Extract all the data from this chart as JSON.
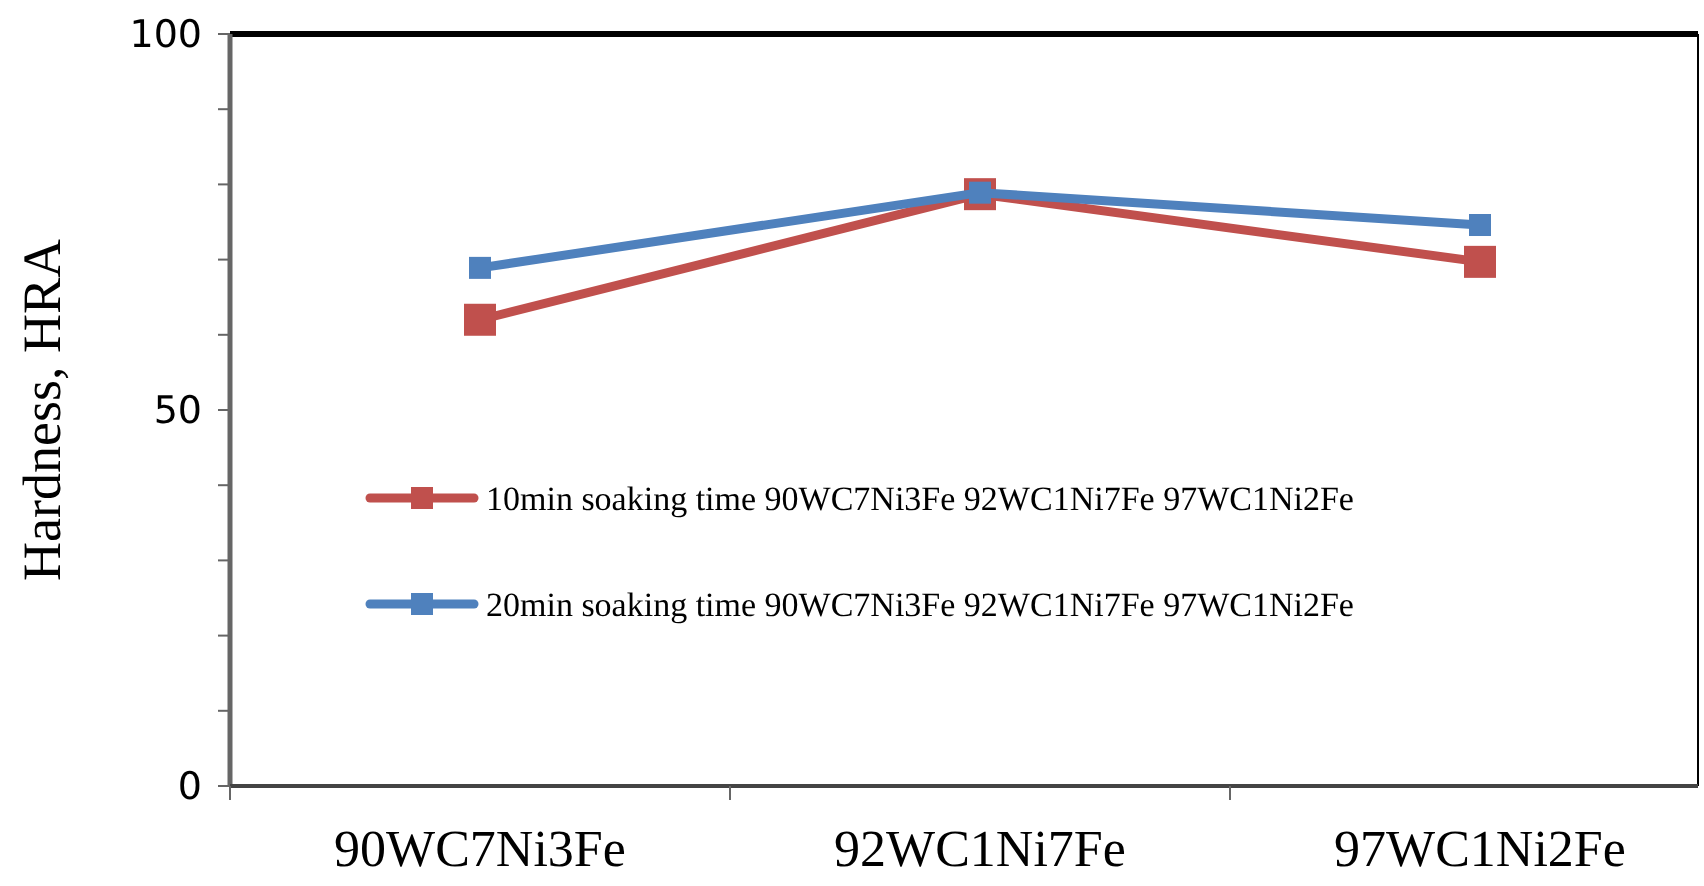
{
  "chart_data": {
    "type": "line",
    "ylabel": "Hardness, HRA",
    "categories": [
      "90WC7Ni3Fe",
      "92WC1Ni7Fe",
      "97WC1Ni2Fe"
    ],
    "series": [
      {
        "name": "10min soaking time 90WC7Ni3Fe 92WC1Ni7Fe 97WC1Ni2Fe",
        "color": "#c0504d",
        "values": [
          62,
          78.7,
          69.7
        ]
      },
      {
        "name": "20min soaking time 90WC7Ni3Fe 92WC1Ni7Fe 97WC1Ni2Fe",
        "color": "#4f81bd",
        "values": [
          68.9,
          78.9,
          74.6
        ]
      }
    ],
    "ylim": [
      0,
      100
    ],
    "yticks": [
      0,
      {
        "value": 10,
        "label": null
      },
      {
        "value": 20,
        "label": null
      },
      {
        "value": 30,
        "label": null
      },
      {
        "value": 40,
        "label": null
      },
      50,
      {
        "value": 60,
        "label": null
      },
      {
        "value": 70,
        "label": null
      },
      {
        "value": 80,
        "label": null
      },
      {
        "value": 90,
        "label": null
      },
      100
    ],
    "grid": false,
    "legend": "center left",
    "marker": "square",
    "line_style": "solid"
  }
}
